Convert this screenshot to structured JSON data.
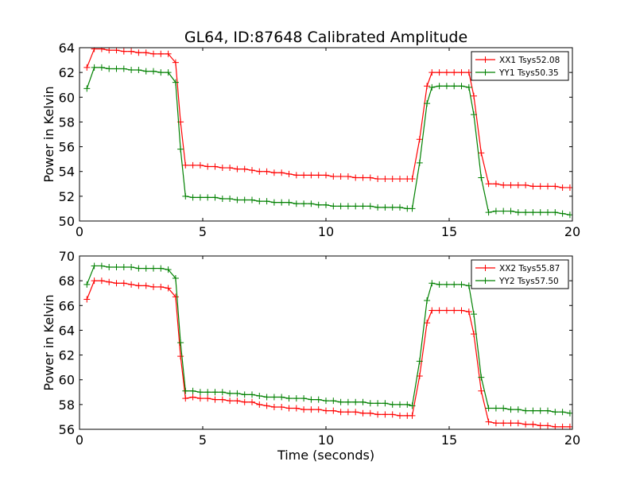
{
  "colors": {
    "red": "#ff0000",
    "green": "#008000"
  },
  "chart_data": [
    {
      "type": "line",
      "title": "GL64, ID:87648 Calibrated Amplitude",
      "xlabel": "",
      "ylabel": "Power in Kelvin",
      "xlim": [
        0,
        20
      ],
      "ylim": [
        50,
        64
      ],
      "xticks": [
        0,
        5,
        10,
        15,
        20
      ],
      "yticks": [
        50,
        52,
        54,
        56,
        58,
        60,
        62,
        64
      ],
      "grid": false,
      "legend_position": "top-right",
      "marker": "plus",
      "x": [
        0.3,
        0.6,
        0.9,
        1.2,
        1.5,
        1.8,
        2.1,
        2.4,
        2.7,
        3.0,
        3.3,
        3.6,
        3.9,
        4.1,
        4.3,
        4.6,
        4.9,
        5.2,
        5.5,
        5.8,
        6.1,
        6.4,
        6.7,
        7.0,
        7.3,
        7.6,
        7.9,
        8.2,
        8.5,
        8.8,
        9.1,
        9.4,
        9.7,
        10.0,
        10.3,
        10.6,
        10.9,
        11.2,
        11.5,
        11.8,
        12.1,
        12.4,
        12.7,
        13.0,
        13.3,
        13.5,
        13.8,
        14.1,
        14.3,
        14.6,
        14.9,
        15.2,
        15.5,
        15.8,
        16.0,
        16.3,
        16.6,
        16.9,
        17.2,
        17.5,
        17.8,
        18.1,
        18.4,
        18.7,
        19.0,
        19.3,
        19.6,
        19.9
      ],
      "series": [
        {
          "name": "XX1 Tsys52.08",
          "color": "#ff0000",
          "values": [
            62.4,
            63.9,
            63.9,
            63.8,
            63.8,
            63.7,
            63.7,
            63.6,
            63.6,
            63.5,
            63.5,
            63.5,
            62.8,
            58.0,
            54.5,
            54.5,
            54.5,
            54.4,
            54.4,
            54.3,
            54.3,
            54.2,
            54.2,
            54.1,
            54.0,
            54.0,
            53.9,
            53.9,
            53.8,
            53.7,
            53.7,
            53.7,
            53.7,
            53.7,
            53.6,
            53.6,
            53.6,
            53.5,
            53.5,
            53.5,
            53.4,
            53.4,
            53.4,
            53.4,
            53.4,
            53.4,
            56.6,
            60.9,
            62.0,
            62.0,
            62.0,
            62.0,
            62.0,
            62.0,
            60.1,
            55.5,
            53.0,
            53.0,
            52.9,
            52.9,
            52.9,
            52.9,
            52.8,
            52.8,
            52.8,
            52.8,
            52.7,
            52.7
          ]
        },
        {
          "name": "YY1 Tsys50.35",
          "color": "#008000",
          "values": [
            60.7,
            62.4,
            62.4,
            62.3,
            62.3,
            62.3,
            62.2,
            62.2,
            62.1,
            62.1,
            62.0,
            62.0,
            61.2,
            55.8,
            52.0,
            51.9,
            51.9,
            51.9,
            51.9,
            51.8,
            51.8,
            51.7,
            51.7,
            51.7,
            51.6,
            51.6,
            51.5,
            51.5,
            51.5,
            51.4,
            51.4,
            51.4,
            51.3,
            51.3,
            51.2,
            51.2,
            51.2,
            51.2,
            51.2,
            51.2,
            51.1,
            51.1,
            51.1,
            51.1,
            51.0,
            51.0,
            54.7,
            59.5,
            60.8,
            60.9,
            60.9,
            60.9,
            60.9,
            60.8,
            58.6,
            53.5,
            50.7,
            50.8,
            50.8,
            50.8,
            50.7,
            50.7,
            50.7,
            50.7,
            50.7,
            50.7,
            50.6,
            50.5
          ]
        }
      ]
    },
    {
      "type": "line",
      "title": "",
      "xlabel": "Time (seconds)",
      "ylabel": "Power in Kelvin",
      "xlim": [
        0,
        20
      ],
      "ylim": [
        56,
        70
      ],
      "xticks": [
        0,
        5,
        10,
        15,
        20
      ],
      "yticks": [
        56,
        58,
        60,
        62,
        64,
        66,
        68,
        70
      ],
      "grid": false,
      "legend_position": "top-right",
      "marker": "plus",
      "x": [
        0.3,
        0.6,
        0.9,
        1.2,
        1.5,
        1.8,
        2.1,
        2.4,
        2.7,
        3.0,
        3.3,
        3.6,
        3.9,
        4.1,
        4.3,
        4.6,
        4.9,
        5.2,
        5.5,
        5.8,
        6.1,
        6.4,
        6.7,
        7.0,
        7.3,
        7.6,
        7.9,
        8.2,
        8.5,
        8.8,
        9.1,
        9.4,
        9.7,
        10.0,
        10.3,
        10.6,
        10.9,
        11.2,
        11.5,
        11.8,
        12.1,
        12.4,
        12.7,
        13.0,
        13.3,
        13.5,
        13.8,
        14.1,
        14.3,
        14.6,
        14.9,
        15.2,
        15.5,
        15.8,
        16.0,
        16.3,
        16.6,
        16.9,
        17.2,
        17.5,
        17.8,
        18.1,
        18.4,
        18.7,
        19.0,
        19.3,
        19.6,
        19.9
      ],
      "series": [
        {
          "name": "XX2 Tsys55.87",
          "color": "#ff0000",
          "values": [
            66.5,
            68.0,
            68.0,
            67.9,
            67.8,
            67.8,
            67.7,
            67.6,
            67.6,
            67.5,
            67.5,
            67.4,
            66.7,
            61.9,
            58.5,
            58.6,
            58.5,
            58.5,
            58.4,
            58.4,
            58.3,
            58.3,
            58.2,
            58.2,
            58.0,
            57.9,
            57.8,
            57.8,
            57.7,
            57.7,
            57.6,
            57.6,
            57.6,
            57.5,
            57.5,
            57.4,
            57.4,
            57.4,
            57.3,
            57.3,
            57.2,
            57.2,
            57.2,
            57.1,
            57.1,
            57.1,
            60.3,
            64.6,
            65.6,
            65.6,
            65.6,
            65.6,
            65.6,
            65.5,
            63.7,
            59.1,
            56.6,
            56.5,
            56.5,
            56.5,
            56.5,
            56.4,
            56.4,
            56.3,
            56.3,
            56.2,
            56.2,
            56.2
          ]
        },
        {
          "name": "YY2 Tsys57.50",
          "color": "#008000",
          "values": [
            67.7,
            69.2,
            69.2,
            69.1,
            69.1,
            69.1,
            69.1,
            69.0,
            69.0,
            69.0,
            69.0,
            68.9,
            68.2,
            63.0,
            59.1,
            59.1,
            59.0,
            59.0,
            59.0,
            59.0,
            58.9,
            58.9,
            58.8,
            58.8,
            58.7,
            58.6,
            58.6,
            58.6,
            58.5,
            58.5,
            58.5,
            58.4,
            58.4,
            58.3,
            58.3,
            58.2,
            58.2,
            58.2,
            58.2,
            58.1,
            58.1,
            58.1,
            58.0,
            58.0,
            58.0,
            57.9,
            61.5,
            66.4,
            67.8,
            67.7,
            67.7,
            67.7,
            67.7,
            67.6,
            65.3,
            60.2,
            57.7,
            57.7,
            57.7,
            57.6,
            57.6,
            57.5,
            57.5,
            57.5,
            57.5,
            57.4,
            57.4,
            57.3
          ]
        }
      ]
    }
  ]
}
